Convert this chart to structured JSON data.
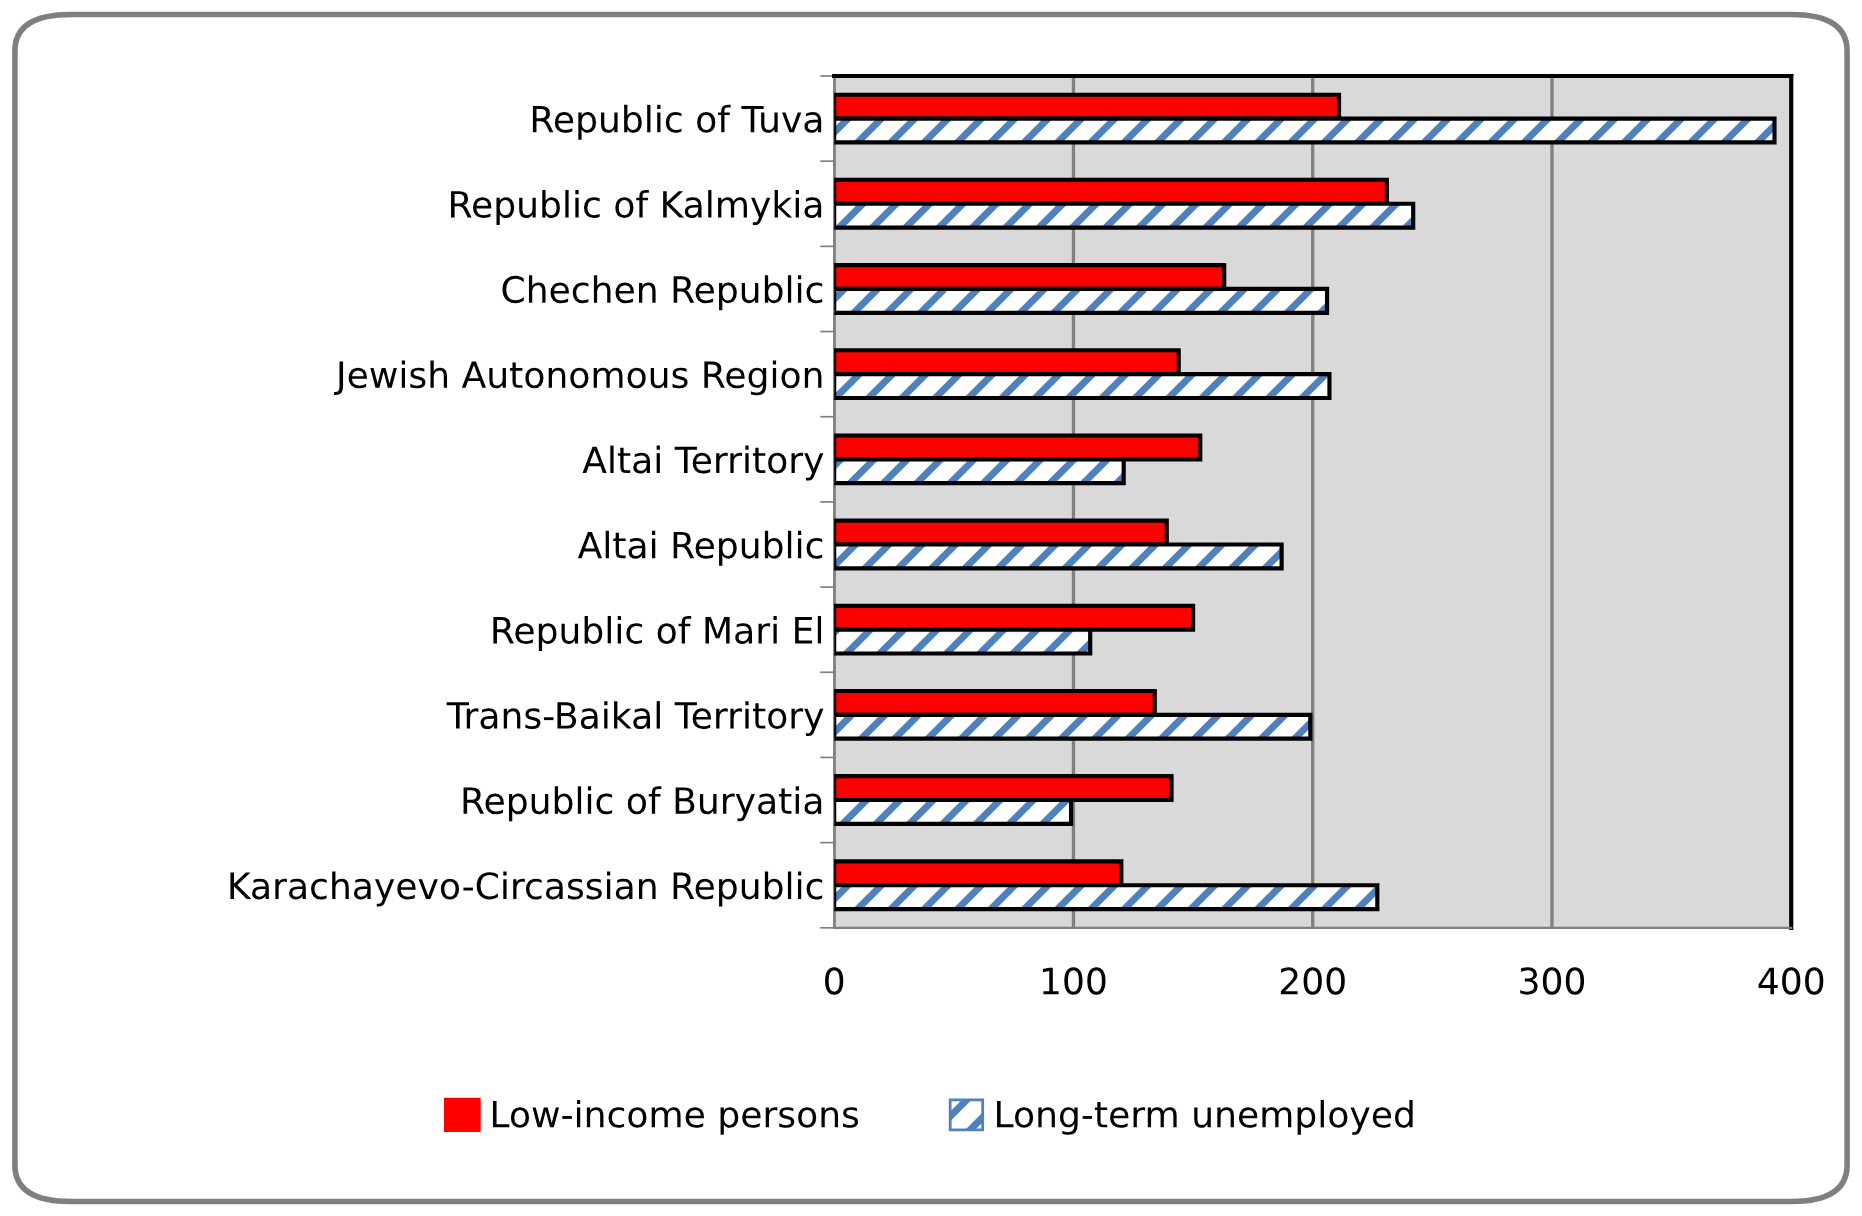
{
  "chart_data": {
    "type": "bar",
    "orientation": "horizontal",
    "categories": [
      "Republic of Tuva",
      "Republic of Kalmykia",
      "Chechen Republic",
      "Jewish Autonomous Region",
      "Altai Territory",
      "Altai Republic",
      "Republic of Mari El",
      "Trans-Baikal Territory",
      "Republic of Buryatia",
      "Karachayevo-Circassian Republic"
    ],
    "series": [
      {
        "name": "Low-income persons",
        "color": "#ff0000",
        "values": [
          211,
          231,
          163,
          144,
          153,
          139,
          150,
          134,
          141,
          120
        ]
      },
      {
        "name": "Long-term unemployed",
        "color": "#4f81bd",
        "values": [
          393,
          242,
          206,
          207,
          121,
          187,
          107,
          199,
          99,
          227
        ]
      }
    ],
    "xlim": [
      0,
      400
    ],
    "xticks": [
      0,
      100,
      200,
      300,
      400
    ],
    "grid": "x",
    "legend": "bottom"
  }
}
